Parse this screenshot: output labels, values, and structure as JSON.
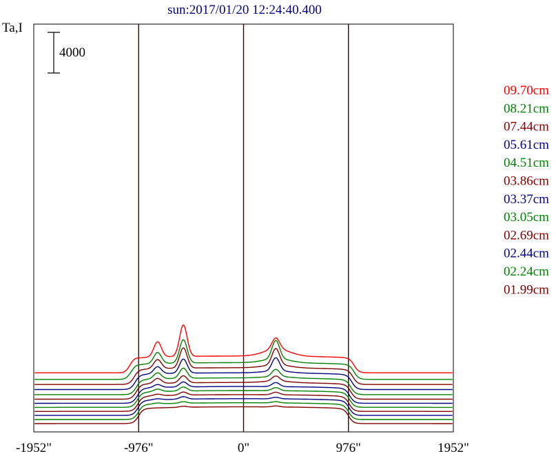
{
  "chart_data": {
    "type": "line",
    "title": "sun:2017/01/20 12:24:40.400",
    "ylabel": "Ta,I",
    "scale_bar_label": "4000",
    "scale_bar_value": 4000,
    "xlim": [
      -1952,
      1952
    ],
    "x_ticks": [
      {
        "value": -1952,
        "label": "-1952\""
      },
      {
        "value": -976,
        "label": "-976\""
      },
      {
        "value": 0,
        "label": "0\""
      },
      {
        "value": 976,
        "label": "976\""
      },
      {
        "value": 1952,
        "label": "1952\""
      }
    ],
    "vlines": [
      -976,
      0,
      976
    ],
    "legend_position": "right",
    "series": [
      {
        "name": "09.70cm",
        "color": "#ff0000"
      },
      {
        "name": "08.21cm",
        "color": "#008000"
      },
      {
        "name": "07.44cm",
        "color": "#800000"
      },
      {
        "name": "05.61cm",
        "color": "#000080"
      },
      {
        "name": "04.51cm",
        "color": "#008000"
      },
      {
        "name": "03.86cm",
        "color": "#800000"
      },
      {
        "name": "03.37cm",
        "color": "#000080"
      },
      {
        "name": "03.05cm",
        "color": "#008000"
      },
      {
        "name": "02.69cm",
        "color": "#800000"
      },
      {
        "name": "02.44cm",
        "color": "#000080"
      },
      {
        "name": "02.24cm",
        "color": "#008000"
      },
      {
        "name": "01.99cm",
        "color": "#800000"
      }
    ],
    "profiles": [
      {
        "offset": 4800,
        "plateau": 1400,
        "limb": 1,
        "peaks": [
          {
            "x": -560,
            "h": 3100
          },
          {
            "x": -800,
            "h": 1500
          },
          {
            "x": 300,
            "h": 1100
          },
          {
            "x": 310,
            "h": 700,
            "w": 120
          },
          {
            "x": -1040,
            "h": 500
          }
        ],
        "edge": 1030
      },
      {
        "offset": 4150,
        "plateau": 1400,
        "limb": 1,
        "peaks": [
          {
            "x": -560,
            "h": 2300
          },
          {
            "x": -800,
            "h": 1100
          },
          {
            "x": 300,
            "h": 1800
          },
          {
            "x": 310,
            "h": 400,
            "w": 120
          },
          {
            "x": -1040,
            "h": 300
          }
        ],
        "edge": 1030
      },
      {
        "offset": 3650,
        "plateau": 1400,
        "limb": 1,
        "peaks": [
          {
            "x": -560,
            "h": 2000
          },
          {
            "x": -800,
            "h": 900
          },
          {
            "x": 300,
            "h": 1600
          },
          {
            "x": 310,
            "h": 300,
            "w": 120
          }
        ],
        "edge": 1020
      },
      {
        "offset": 3150,
        "plateau": 1400,
        "limb": 1,
        "peaks": [
          {
            "x": -560,
            "h": 1400
          },
          {
            "x": -800,
            "h": 700
          },
          {
            "x": 300,
            "h": 1300
          },
          {
            "x": 310,
            "h": 200,
            "w": 120
          }
        ],
        "edge": 1010
      },
      {
        "offset": 2650,
        "plateau": 1400,
        "limb": 1,
        "peaks": [
          {
            "x": -560,
            "h": 1000
          },
          {
            "x": -800,
            "h": 600
          },
          {
            "x": 300,
            "h": 700
          },
          {
            "x": 310,
            "h": 150,
            "w": 120
          }
        ],
        "edge": 1000
      },
      {
        "offset": 2200,
        "plateau": 1400,
        "limb": 1,
        "peaks": [
          {
            "x": -560,
            "h": 700
          },
          {
            "x": -800,
            "h": 500
          },
          {
            "x": 300,
            "h": 500
          },
          {
            "x": 310,
            "h": 150,
            "w": 120
          }
        ],
        "edge": 1000
      },
      {
        "offset": 1800,
        "plateau": 1400,
        "limb": 1,
        "peaks": [
          {
            "x": -560,
            "h": 500
          },
          {
            "x": -800,
            "h": 300
          },
          {
            "x": 300,
            "h": 400
          }
        ],
        "edge": 990
      },
      {
        "offset": 1400,
        "plateau": 1400,
        "limb": 1,
        "peaks": [
          {
            "x": -560,
            "h": 400
          },
          {
            "x": -800,
            "h": 250
          },
          {
            "x": 300,
            "h": 300
          }
        ],
        "edge": 990
      },
      {
        "offset": 1000,
        "plateau": 1400,
        "limb": 1,
        "peaks": [
          {
            "x": -560,
            "h": 300
          },
          {
            "x": -800,
            "h": 150
          },
          {
            "x": 300,
            "h": 250
          }
        ],
        "edge": 985
      },
      {
        "offset": 600,
        "plateau": 1400,
        "limb": 1,
        "peaks": [
          {
            "x": -560,
            "h": 250
          },
          {
            "x": -800,
            "h": 100
          },
          {
            "x": 300,
            "h": 150
          }
        ],
        "edge": 985
      },
      {
        "offset": 200,
        "plateau": 1400,
        "limb": 1,
        "peaks": [
          {
            "x": -560,
            "h": 150
          },
          {
            "x": -800,
            "h": 80
          },
          {
            "x": 300,
            "h": 120
          }
        ],
        "edge": 980
      },
      {
        "offset": -200,
        "plateau": 1400,
        "limb": 1,
        "peaks": [
          {
            "x": -560,
            "h": 100
          },
          {
            "x": 300,
            "h": 100
          }
        ],
        "edge": 980
      }
    ]
  }
}
